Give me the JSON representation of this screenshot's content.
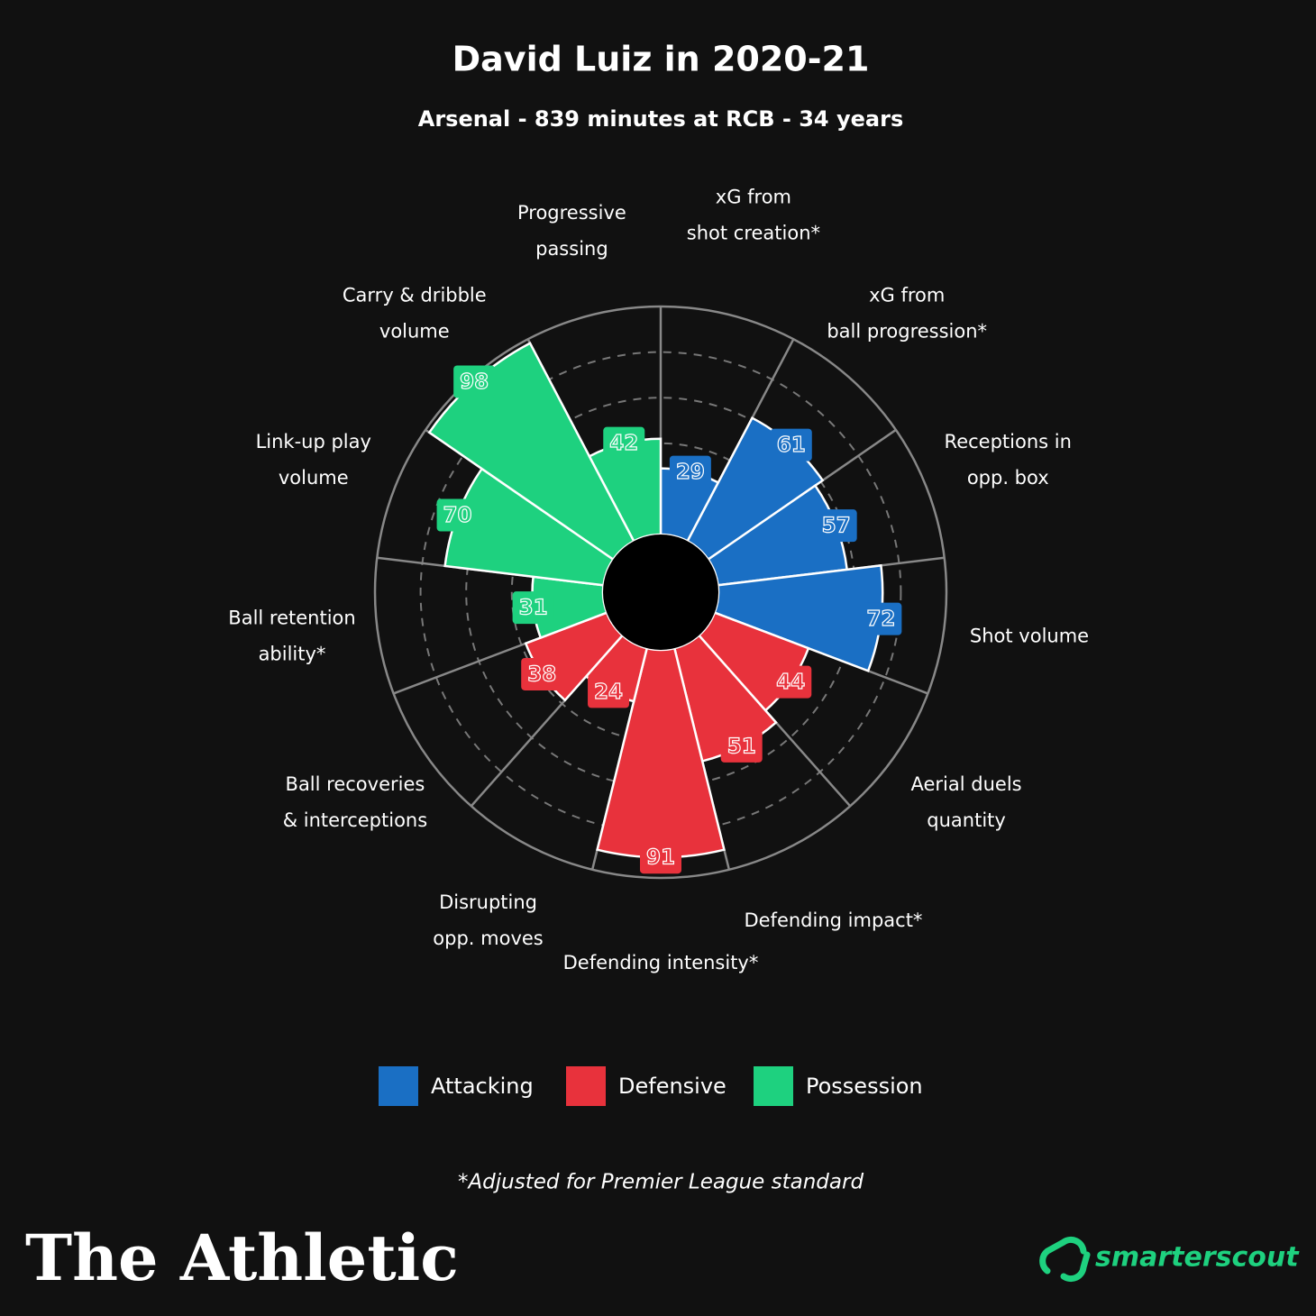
{
  "chart_data": {
    "type": "polar-bar",
    "title": "David Luiz in 2020-21",
    "subtitle": "Arsenal - 839 minutes at RCB - 34 years",
    "categories": [
      [
        "xG from",
        "shot creation*"
      ],
      [
        "xG from",
        "ball progression*"
      ],
      [
        "Receptions in",
        "opp. box"
      ],
      [
        "Shot volume"
      ],
      [
        "Aerial duels",
        "quantity"
      ],
      [
        "Defending impact*"
      ],
      [
        "Defending intensity*"
      ],
      [
        "Disrupting",
        "opp. moves"
      ],
      [
        "Ball recoveries",
        "& interceptions"
      ],
      [
        "Ball retention",
        "ability*"
      ],
      [
        "Link-up play",
        "volume"
      ],
      [
        "Carry & dribble",
        "volume"
      ],
      [
        "Progressive",
        "passing"
      ]
    ],
    "series": [
      {
        "name": "Attacking",
        "color": "#1a6fc4",
        "values": [
          29,
          61,
          57,
          72,
          null,
          null,
          null,
          null,
          null,
          null,
          null,
          null,
          null
        ]
      },
      {
        "name": "Defensive",
        "color": "#e8323c",
        "values": [
          null,
          null,
          null,
          null,
          44,
          51,
          91,
          24,
          38,
          null,
          null,
          null,
          null
        ]
      },
      {
        "name": "Possession",
        "color": "#1ed17f",
        "values": [
          null,
          null,
          null,
          null,
          null,
          null,
          null,
          null,
          null,
          31,
          70,
          98,
          42
        ]
      }
    ],
    "rlim": [
      0,
      100
    ],
    "rticks": [
      20,
      40,
      60,
      80
    ],
    "footnote": "*Adjusted for Premier League standard",
    "branding": {
      "publisher": "The Athletic",
      "source": "smarterscout"
    }
  }
}
